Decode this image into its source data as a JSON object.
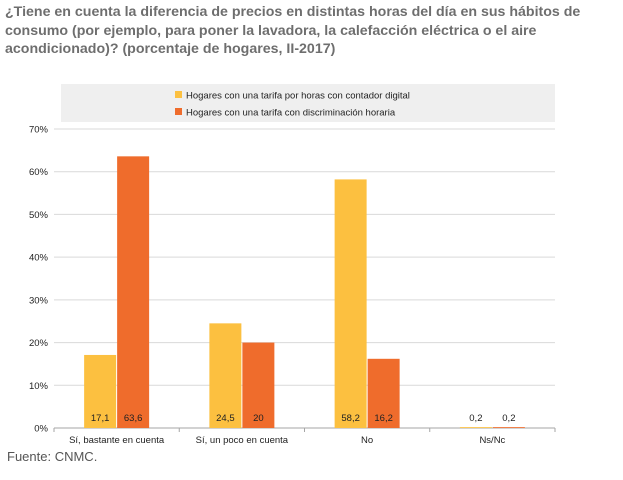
{
  "title": "¿Tiene en cuenta la diferencia de precios en distintas horas del día en sus hábitos de consumo (por ejemplo, para poner la lavadora, la calefacción eléctrica o el aire acondicionado)? (porcentaje de hogares, II-2017)",
  "source": "Fuente: CNMC.",
  "colors": {
    "series1": "#fcc040",
    "series2": "#ef6c2c",
    "grid": "#d9d9d9",
    "legend_bg": "#efefef"
  },
  "chart_data": {
    "type": "bar",
    "categories": [
      "Sí, bastante en cuenta",
      "Sí, un poco en cuenta",
      "No",
      "Ns/Nc"
    ],
    "series": [
      {
        "name": "Hogares con una tarifa por horas con contador digital",
        "values": [
          17.1,
          24.5,
          58.2,
          0.2
        ],
        "labels": [
          "17,1",
          "24,5",
          "58,2",
          "0,2"
        ]
      },
      {
        "name": "Hogares con una tarifa  con discriminación horaria",
        "values": [
          63.6,
          20,
          16.2,
          0.2
        ],
        "labels": [
          "63,6",
          "20",
          "16,2",
          "0,2"
        ]
      }
    ],
    "yticks": [
      "0%",
      "10%",
      "20%",
      "30%",
      "40%",
      "50%",
      "60%",
      "70%"
    ],
    "ylim": [
      0,
      70
    ],
    "grid": true,
    "legend": "top-center",
    "data_labels": "inside-base"
  }
}
